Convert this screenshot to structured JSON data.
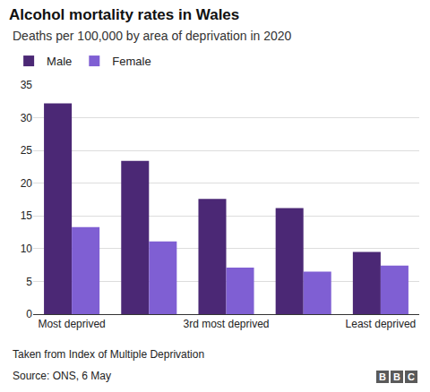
{
  "chart_data": {
    "type": "bar",
    "title": "Alcohol mortality rates in Wales",
    "subtitle": "Deaths per 100,000 by area of deprivation in 2020",
    "note": "Taken from Index of Multiple Deprivation",
    "source": "Source: ONS, 6 May",
    "logo": "BBC",
    "categories": [
      "Most deprived",
      null,
      "3rd most deprived",
      null,
      "Least deprived"
    ],
    "series": [
      {
        "name": "Male",
        "color": "#4b2875",
        "values": [
          32.2,
          23.4,
          17.6,
          16.2,
          9.5
        ]
      },
      {
        "name": "Female",
        "color": "#7f5fd3",
        "values": [
          13.3,
          11.1,
          7.1,
          6.5,
          7.4
        ]
      }
    ],
    "ylim": [
      0,
      35
    ],
    "yticks": [
      0,
      5,
      10,
      15,
      20,
      25,
      30,
      35
    ],
    "grid": true,
    "legend": "top left"
  }
}
